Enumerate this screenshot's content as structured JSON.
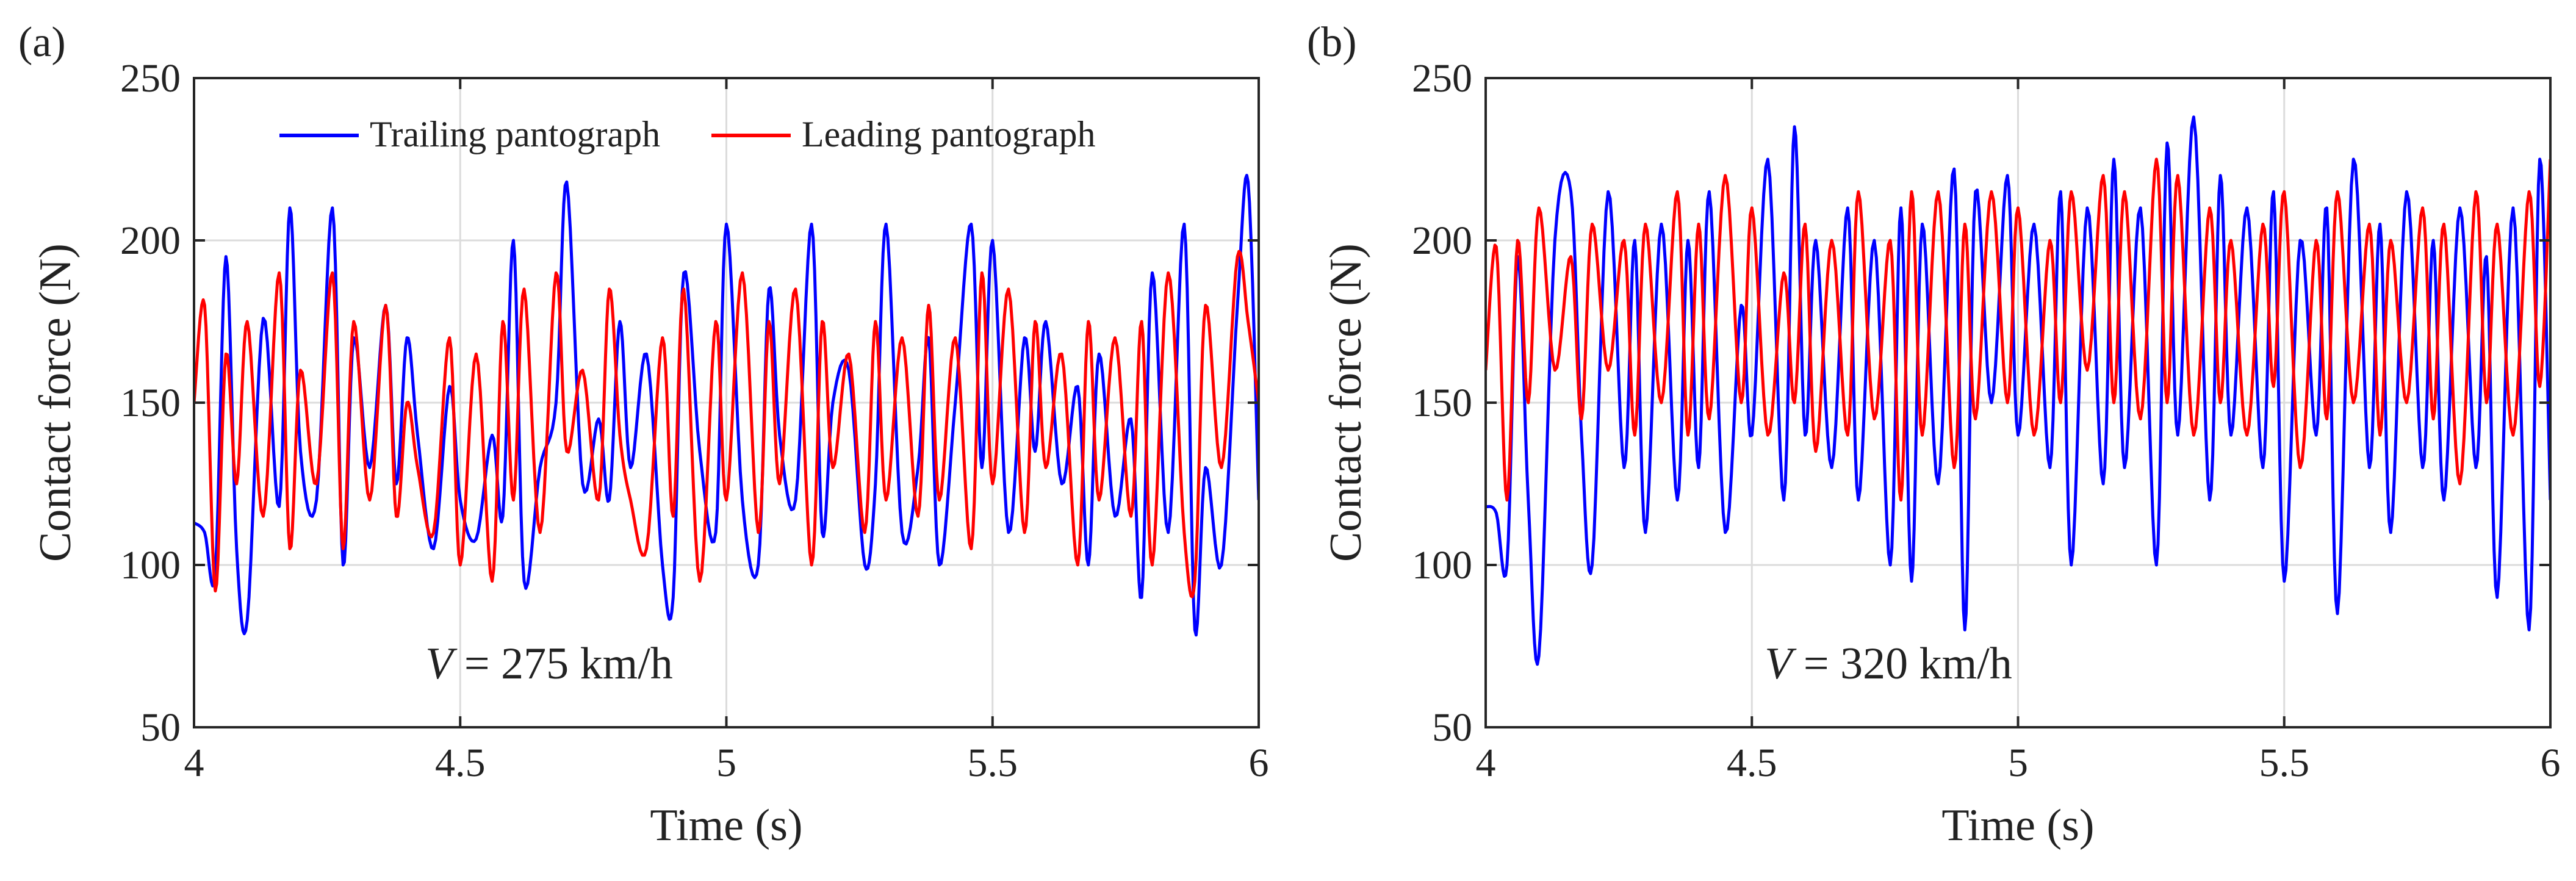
{
  "colors": {
    "trailing": "#0000ff",
    "leading": "#ff0000",
    "axis": "#262626",
    "grid": "#dcdcdc"
  },
  "chart_data": [
    {
      "type": "line",
      "panel_label": "(a)",
      "xlabel": "Time (s)",
      "ylabel": "Contact force (N)",
      "xlim": [
        4,
        6
      ],
      "ylim": [
        50,
        250
      ],
      "xticks": [
        4,
        4.5,
        5,
        5.5,
        6
      ],
      "xtick_labels": [
        "4",
        "4.5",
        "5",
        "5.5",
        "6"
      ],
      "yticks": [
        50,
        100,
        150,
        200,
        250
      ],
      "ytick_labels": [
        "50",
        "100",
        "150",
        "200",
        "250"
      ],
      "grid": true,
      "legend": {
        "position": "top",
        "entries": [
          "Trailing pantograph",
          "Leading pantograph"
        ]
      },
      "annotation": {
        "var": "V",
        "text": " = 275 km/h"
      },
      "series": [
        {
          "name": "Trailing pantograph",
          "color": "#0000ff",
          "x": [
            4.0,
            4.02,
            4.04,
            4.06,
            4.08,
            4.1,
            4.13,
            4.16,
            4.18,
            4.2,
            4.23,
            4.26,
            4.28,
            4.3,
            4.33,
            4.36,
            4.38,
            4.4,
            4.42,
            4.45,
            4.48,
            4.5,
            4.53,
            4.56,
            4.58,
            4.6,
            4.62,
            4.65,
            4.68,
            4.7,
            4.73,
            4.76,
            4.78,
            4.8,
            4.82,
            4.85,
            4.88,
            4.9,
            4.92,
            4.95,
            4.98,
            5.0,
            5.03,
            5.06,
            5.08,
            5.1,
            5.13,
            5.16,
            5.18,
            5.2,
            5.23,
            5.26,
            5.28,
            5.3,
            5.33,
            5.36,
            5.38,
            5.4,
            5.43,
            5.46,
            5.48,
            5.5,
            5.53,
            5.56,
            5.58,
            5.6,
            5.63,
            5.66,
            5.68,
            5.7,
            5.73,
            5.76,
            5.78,
            5.8,
            5.83,
            5.86,
            5.88,
            5.9,
            5.93,
            5.96,
            5.98,
            6.0
          ],
          "y": [
            113,
            110,
            98,
            195,
            105,
            83,
            176,
            118,
            210,
            135,
            120,
            210,
            100,
            170,
            130,
            180,
            125,
            170,
            140,
            105,
            155,
            120,
            108,
            140,
            115,
            200,
            95,
            130,
            150,
            218,
            125,
            145,
            120,
            175,
            130,
            165,
            100,
            90,
            190,
            135,
            110,
            205,
            120,
            100,
            185,
            140,
            120,
            205,
            110,
            150,
            160,
            100,
            125,
            205,
            110,
            130,
            170,
            100,
            150,
            205,
            130,
            200,
            110,
            170,
            135,
            175,
            125,
            155,
            100,
            165,
            115,
            145,
            90,
            190,
            110,
            205,
            80,
            130,
            100,
            180,
            218,
            120
          ],
          "note": "values estimated from figure; rendered with interpolated oscillation"
        },
        {
          "name": "Leading pantograph",
          "color": "#ff0000",
          "x": [
            4.0,
            4.02,
            4.04,
            4.06,
            4.08,
            4.1,
            4.13,
            4.16,
            4.18,
            4.2,
            4.23,
            4.26,
            4.28,
            4.3,
            4.33,
            4.36,
            4.38,
            4.4,
            4.42,
            4.45,
            4.48,
            4.5,
            4.53,
            4.56,
            4.58,
            4.6,
            4.62,
            4.65,
            4.68,
            4.7,
            4.73,
            4.76,
            4.78,
            4.8,
            4.82,
            4.85,
            4.88,
            4.9,
            4.92,
            4.95,
            4.98,
            5.0,
            5.03,
            5.06,
            5.08,
            5.1,
            5.13,
            5.16,
            5.18,
            5.2,
            5.23,
            5.26,
            5.28,
            5.3,
            5.33,
            5.36,
            5.38,
            5.4,
            5.43,
            5.46,
            5.48,
            5.5,
            5.53,
            5.56,
            5.58,
            5.6,
            5.63,
            5.66,
            5.68,
            5.7,
            5.73,
            5.76,
            5.78,
            5.8,
            5.83,
            5.86,
            5.88,
            5.9,
            5.93,
            5.96,
            5.98,
            6.0
          ],
          "y": [
            150,
            180,
            92,
            165,
            125,
            175,
            115,
            190,
            105,
            160,
            125,
            190,
            105,
            175,
            120,
            180,
            115,
            150,
            130,
            110,
            170,
            100,
            165,
            95,
            175,
            120,
            185,
            110,
            190,
            135,
            160,
            120,
            185,
            140,
            120,
            105,
            170,
            115,
            185,
            95,
            175,
            120,
            190,
            110,
            175,
            125,
            185,
            100,
            175,
            130,
            165,
            110,
            175,
            120,
            170,
            115,
            180,
            120,
            170,
            105,
            190,
            125,
            185,
            110,
            175,
            130,
            165,
            100,
            175,
            120,
            170,
            115,
            175,
            100,
            190,
            110,
            95,
            180,
            130,
            195,
            175,
            150
          ]
        }
      ]
    },
    {
      "type": "line",
      "panel_label": "(b)",
      "xlabel": "Time (s)",
      "ylabel": "Contact force (N)",
      "xlim": [
        4,
        6
      ],
      "ylim": [
        50,
        250
      ],
      "xticks": [
        4,
        4.5,
        5,
        5.5,
        6
      ],
      "xtick_labels": [
        "4",
        "4.5",
        "5",
        "5.5",
        "6"
      ],
      "yticks": [
        50,
        100,
        150,
        200,
        250
      ],
      "ytick_labels": [
        "50",
        "100",
        "150",
        "200",
        "250"
      ],
      "grid": true,
      "annotation": {
        "var": "V",
        "text": " = 320 km/h"
      },
      "series": [
        {
          "name": "Trailing pantograph",
          "color": "#0000ff",
          "x": [
            4.0,
            4.02,
            4.04,
            4.06,
            4.08,
            4.1,
            4.13,
            4.16,
            4.18,
            4.2,
            4.23,
            4.26,
            4.28,
            4.3,
            4.33,
            4.36,
            4.38,
            4.4,
            4.42,
            4.45,
            4.48,
            4.5,
            4.53,
            4.56,
            4.58,
            4.6,
            4.62,
            4.65,
            4.68,
            4.7,
            4.73,
            4.76,
            4.78,
            4.8,
            4.82,
            4.85,
            4.88,
            4.9,
            4.92,
            4.95,
            4.98,
            5.0,
            5.03,
            5.06,
            5.08,
            5.1,
            5.13,
            5.16,
            5.18,
            5.2,
            5.23,
            5.26,
            5.28,
            5.3,
            5.33,
            5.36,
            5.38,
            5.4,
            5.43,
            5.46,
            5.48,
            5.5,
            5.53,
            5.56,
            5.58,
            5.6,
            5.63,
            5.66,
            5.68,
            5.7,
            5.73,
            5.76,
            5.78,
            5.8,
            5.83,
            5.86,
            5.88,
            5.9,
            5.93,
            5.96,
            5.98,
            6.0
          ],
          "y": [
            118,
            116,
            100,
            195,
            120,
            72,
            200,
            215,
            140,
            100,
            215,
            130,
            200,
            110,
            205,
            120,
            200,
            130,
            215,
            110,
            180,
            140,
            225,
            120,
            235,
            140,
            200,
            130,
            210,
            120,
            200,
            100,
            210,
            95,
            205,
            125,
            222,
            80,
            215,
            150,
            220,
            140,
            205,
            130,
            215,
            100,
            210,
            125,
            225,
            130,
            210,
            100,
            230,
            140,
            238,
            120,
            220,
            140,
            210,
            130,
            215,
            95,
            200,
            140,
            210,
            85,
            225,
            130,
            205,
            110,
            215,
            130,
            200,
            120,
            210,
            130,
            195,
            90,
            210,
            80,
            225,
            120
          ]
        },
        {
          "name": "Leading pantograph",
          "color": "#ff0000",
          "x": [
            4.0,
            4.02,
            4.04,
            4.06,
            4.08,
            4.1,
            4.13,
            4.16,
            4.18,
            4.2,
            4.23,
            4.26,
            4.28,
            4.3,
            4.33,
            4.36,
            4.38,
            4.4,
            4.42,
            4.45,
            4.48,
            4.5,
            4.53,
            4.56,
            4.58,
            4.6,
            4.62,
            4.65,
            4.68,
            4.7,
            4.73,
            4.76,
            4.78,
            4.8,
            4.82,
            4.85,
            4.88,
            4.9,
            4.92,
            4.95,
            4.98,
            5.0,
            5.03,
            5.06,
            5.08,
            5.1,
            5.13,
            5.16,
            5.18,
            5.2,
            5.23,
            5.26,
            5.28,
            5.3,
            5.33,
            5.36,
            5.38,
            5.4,
            5.43,
            5.46,
            5.48,
            5.5,
            5.53,
            5.56,
            5.58,
            5.6,
            5.63,
            5.66,
            5.68,
            5.7,
            5.73,
            5.76,
            5.78,
            5.8,
            5.83,
            5.86,
            5.88,
            5.9,
            5.93,
            5.96,
            5.98,
            6.0
          ],
          "y": [
            160,
            198,
            120,
            200,
            150,
            210,
            160,
            195,
            145,
            205,
            160,
            200,
            140,
            205,
            150,
            215,
            140,
            205,
            145,
            220,
            150,
            210,
            140,
            190,
            150,
            205,
            135,
            200,
            140,
            215,
            145,
            200,
            120,
            215,
            140,
            215,
            130,
            205,
            145,
            215,
            150,
            210,
            140,
            200,
            150,
            215,
            160,
            220,
            150,
            215,
            145,
            225,
            150,
            220,
            140,
            210,
            150,
            200,
            140,
            205,
            155,
            215,
            130,
            200,
            145,
            215,
            150,
            205,
            140,
            200,
            150,
            210,
            145,
            205,
            125,
            215,
            150,
            205,
            140,
            215,
            155,
            225
          ]
        }
      ]
    }
  ]
}
